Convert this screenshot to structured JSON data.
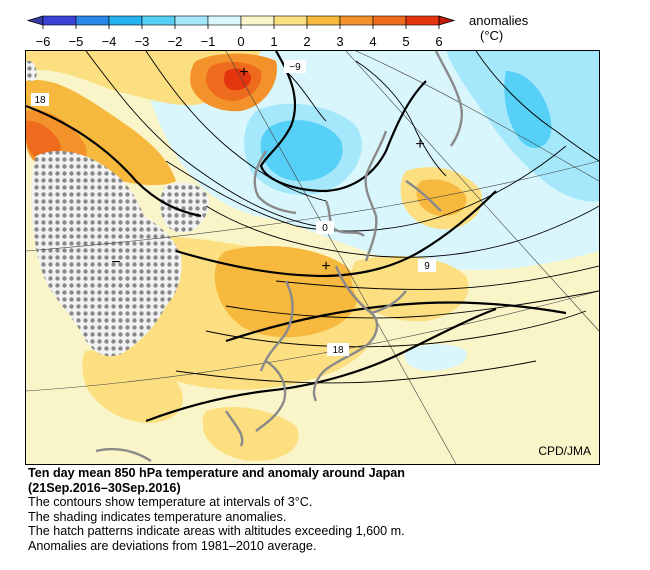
{
  "colorbar": {
    "ticks": [
      "−6",
      "−5",
      "−4",
      "−3",
      "−2",
      "−1",
      "0",
      "1",
      "2",
      "3",
      "4",
      "5",
      "6"
    ],
    "unit_line1": "anomalies",
    "unit_line2": "(°C)",
    "colors": [
      "#3b43d6",
      "#2a86e8",
      "#26b4f0",
      "#56d0f7",
      "#a5e8fb",
      "#d9f6fc",
      "#faf5c8",
      "#fbdf80",
      "#f7b83e",
      "#f3922a",
      "#ee6a1c",
      "#e5350e"
    ]
  },
  "map": {
    "credit": "CPD/JMA",
    "contour_labels": [
      "18",
      "−9",
      "0",
      "9",
      "18"
    ],
    "anomaly_center_marks": [
      "+",
      "+",
      "+",
      "−"
    ]
  },
  "caption": {
    "title_line1": "Ten day mean 850 hPa temperature and anomaly around Japan",
    "title_line2": "(21Sep.2016–30Sep.2016)",
    "lines": [
      "The contours show temperature at intervals of 3°C.",
      "The shading indicates temperature anomalies.",
      "The hatch patterns indicate areas with altitudes exceeding 1,600 m.",
      "Anomalies are deviations from 1981–2010 average."
    ]
  }
}
